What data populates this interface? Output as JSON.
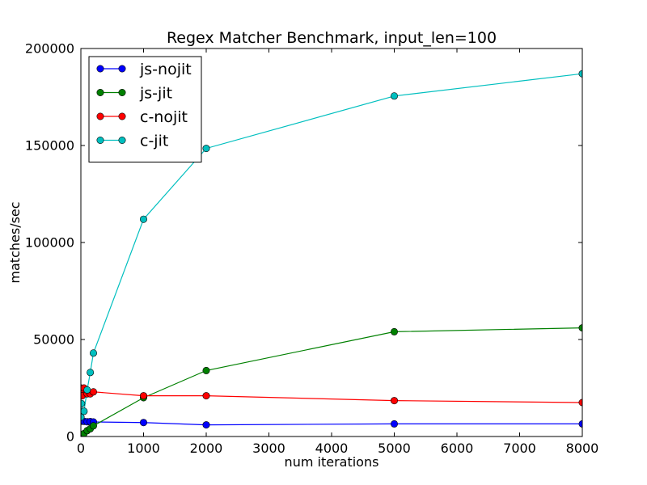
{
  "chart_data": {
    "type": "line",
    "title": "Regex Matcher Benchmark, input_len=100",
    "xlabel": "num iterations",
    "ylabel": "matches/sec",
    "xlim": [
      0,
      8000
    ],
    "ylim": [
      0,
      200000
    ],
    "xticks": [
      0,
      1000,
      2000,
      3000,
      4000,
      5000,
      6000,
      7000,
      8000
    ],
    "yticks": [
      0,
      50000,
      100000,
      150000,
      200000
    ],
    "xtick_labels": [
      "0",
      "1000",
      "2000",
      "3000",
      "4000",
      "5000",
      "6000",
      "7000",
      "8000"
    ],
    "ytick_labels": [
      "0",
      "50000",
      "100000",
      "150000",
      "200000"
    ],
    "legend_position": "top-left",
    "grid": false,
    "series": [
      {
        "name": "js-nojit",
        "color": "#0000ff",
        "points": [
          [
            1,
            8500
          ],
          [
            10,
            8300
          ],
          [
            20,
            7900
          ],
          [
            50,
            7800
          ],
          [
            100,
            7600
          ],
          [
            150,
            7700
          ],
          [
            200,
            7500
          ],
          [
            1000,
            7200
          ],
          [
            2000,
            6000
          ],
          [
            5000,
            6500
          ],
          [
            8000,
            6500
          ]
        ]
      },
      {
        "name": "js-jit",
        "color": "#008000",
        "points": [
          [
            1,
            200
          ],
          [
            10,
            400
          ],
          [
            20,
            800
          ],
          [
            50,
            1500
          ],
          [
            100,
            3000
          ],
          [
            150,
            4000
          ],
          [
            200,
            5500
          ],
          [
            1000,
            20000
          ],
          [
            2000,
            34000
          ],
          [
            5000,
            54000
          ],
          [
            8000,
            56000
          ]
        ]
      },
      {
        "name": "c-nojit",
        "color": "#ff0000",
        "points": [
          [
            1,
            25000
          ],
          [
            10,
            22000
          ],
          [
            20,
            21000
          ],
          [
            50,
            25000
          ],
          [
            100,
            22000
          ],
          [
            150,
            22000
          ],
          [
            200,
            23000
          ],
          [
            1000,
            21000
          ],
          [
            2000,
            21000
          ],
          [
            5000,
            18500
          ],
          [
            8000,
            17500
          ]
        ]
      },
      {
        "name": "c-jit",
        "color": "#00bfbf",
        "points": [
          [
            1,
            10000
          ],
          [
            10,
            17000
          ],
          [
            50,
            13000
          ],
          [
            100,
            24000
          ],
          [
            150,
            33000
          ],
          [
            200,
            43000
          ],
          [
            1000,
            112000
          ],
          [
            2000,
            148500
          ],
          [
            5000,
            175500
          ],
          [
            8000,
            187000
          ]
        ]
      }
    ]
  }
}
